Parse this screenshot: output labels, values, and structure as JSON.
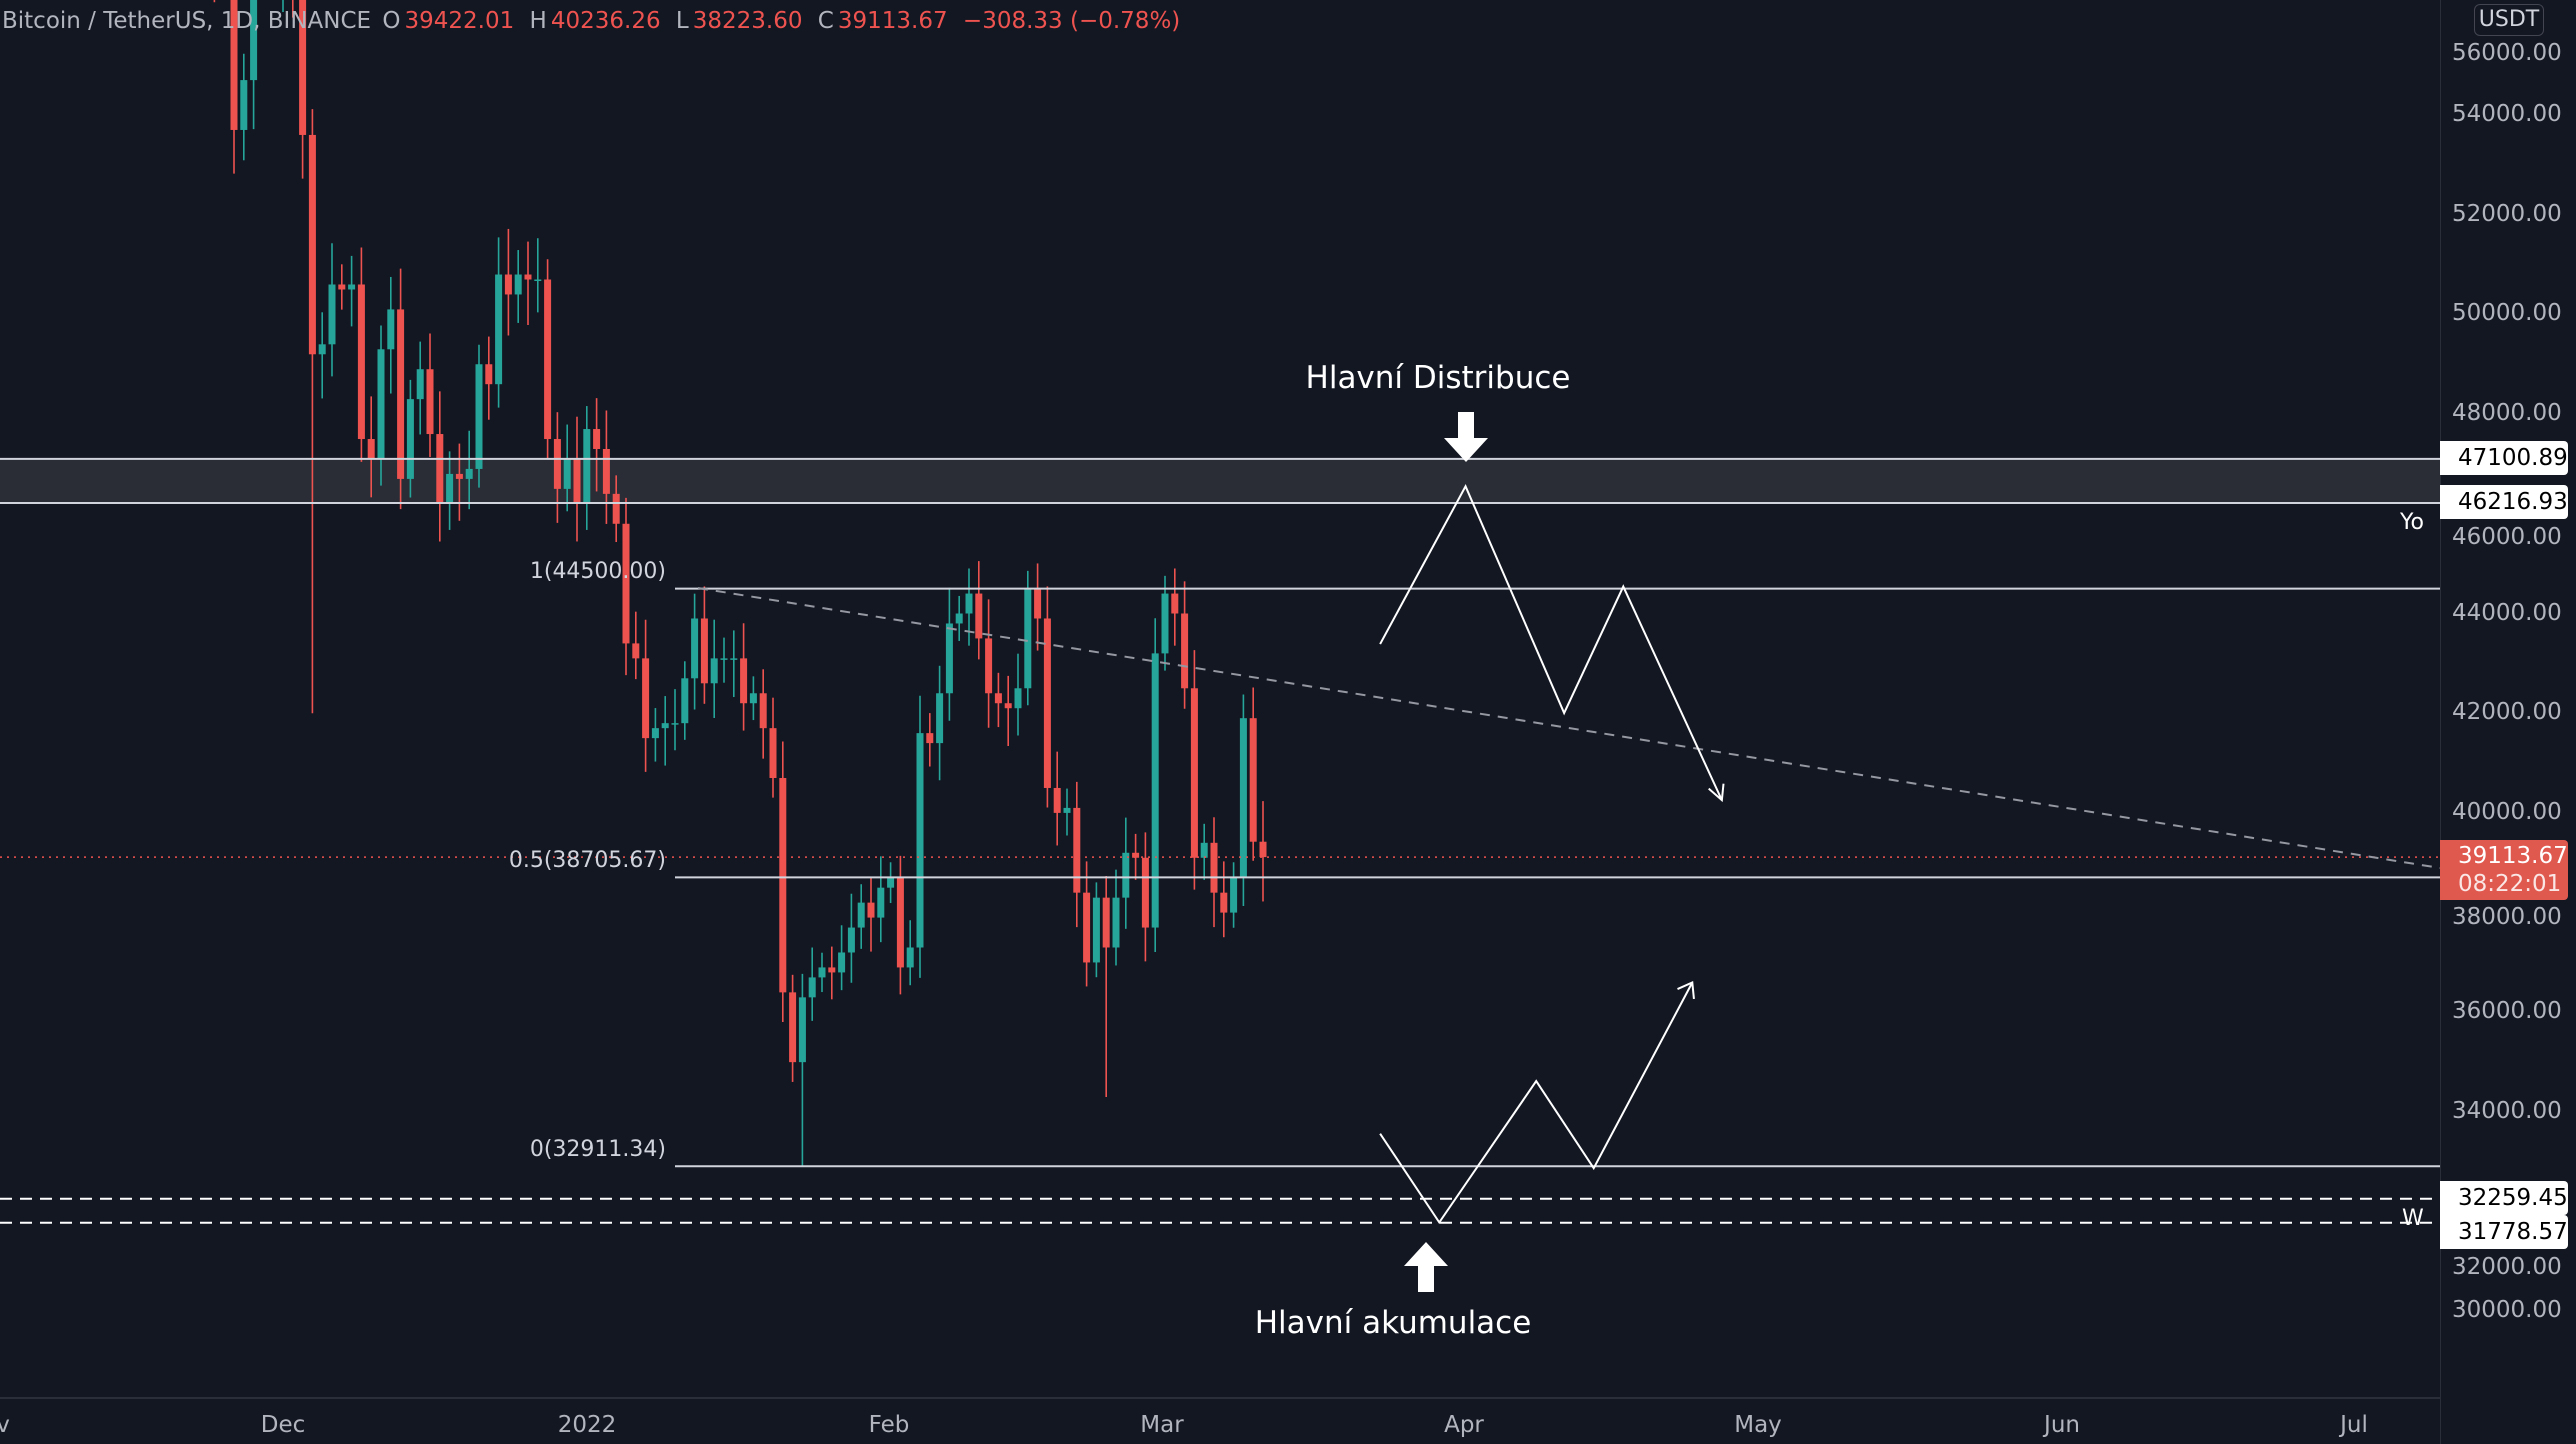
{
  "header": {
    "symbol": "Bitcoin / TetherUS, 1D, BINANCE",
    "o_label": "O",
    "o": "39422.01",
    "h_label": "H",
    "h": "40236.26",
    "l_label": "L",
    "l": "38223.60",
    "c_label": "C",
    "c": "39113.67",
    "change": "−308.33 (−0.78%)"
  },
  "currency": "USDT",
  "colors": {
    "bg": "#131722",
    "up": "#26a69a",
    "down": "#ef5350",
    "line": "#d1d4dc"
  },
  "price_labels": [
    "56000.00",
    "54000.00",
    "52000.00",
    "50000.00",
    "48000.00",
    "46000.00",
    "44000.00",
    "42000.00",
    "40000.00",
    "38000.00",
    "36000.00",
    "34000.00",
    "32000.00",
    "30000.00"
  ],
  "level_tags": {
    "t1": "47100.89",
    "t2": "46216.93",
    "t3": "32259.45",
    "t4": "31778.57"
  },
  "current": {
    "price": "39113.67",
    "countdown": "08:22:01"
  },
  "time_labels": [
    "v",
    "Dec",
    "2022",
    "Feb",
    "Mar",
    "Apr",
    "May",
    "Jun",
    "Jul"
  ],
  "annotations": {
    "top": "Hlavní Distribuce",
    "bottom": "Hlavní akumulace",
    "fib1": "1(44500.00)",
    "fib05": "0.5(38705.67)",
    "fib0": "0(32911.34)",
    "yo": "Yo",
    "w": "W"
  },
  "chart_data": {
    "type": "candlestick",
    "title": "Bitcoin / TetherUS, 1D, BINANCE",
    "ylabel": "USDT",
    "ylim": [
      29000,
      56500
    ],
    "start_date": "2021-11-23",
    "close": [
      57500,
      57100,
      58900,
      53700,
      54700,
      57200,
      57800,
      56900,
      57200,
      56500,
      53600,
      49200,
      49400,
      50600,
      50500,
      50600,
      47500,
      47100,
      49300,
      50100,
      46700,
      48300,
      48900,
      47600,
      46200,
      46800,
      46700,
      46900,
      49000,
      48600,
      50800,
      50400,
      50800,
      50700,
      50700,
      47500,
      46500,
      47100,
      46200,
      47700,
      47300,
      46400,
      45800,
      43400,
      43100,
      41500,
      41700,
      41800,
      41800,
      42700,
      43900,
      42600,
      43100,
      43100,
      43100,
      42200,
      42400,
      41700,
      40700,
      36400,
      35000,
      36300,
      36700,
      36900,
      36800,
      37200,
      37700,
      38200,
      37900,
      38500,
      38700,
      36900,
      37300,
      41600,
      41400,
      42400,
      43800,
      44000,
      44400,
      43500,
      42400,
      42200,
      42100,
      42500,
      44500,
      43900,
      40500,
      40000,
      40100,
      38400,
      37000,
      38300,
      37300,
      38300,
      39200,
      39100,
      37700,
      43200,
      44400,
      44000,
      42500,
      39100,
      39400,
      38400,
      38000,
      38700,
      41900,
      39422,
      39113.67
    ],
    "levels": [
      47100.89,
      46216.93,
      44500,
      38705.67,
      32911.34,
      32259.45,
      31778.57
    ]
  }
}
